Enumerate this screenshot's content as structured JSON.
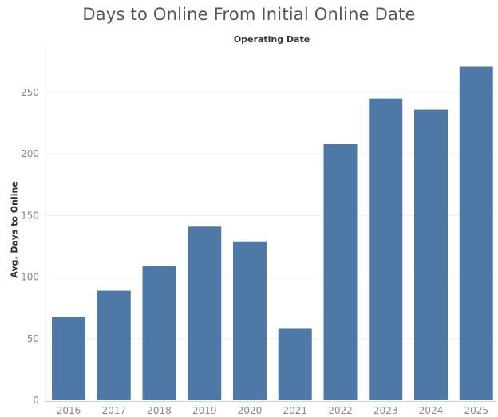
{
  "chart_data": {
    "type": "bar",
    "title": "Days to Online From Initial Online Date",
    "header": "Operating Date",
    "xlabel": "",
    "ylabel": "Avg. Days to Online",
    "categories": [
      "2016",
      "2017",
      "2018",
      "2019",
      "2020",
      "2021",
      "2022",
      "2023",
      "2024",
      "2025"
    ],
    "values": [
      68,
      89,
      109,
      141,
      129,
      58,
      208,
      245,
      236,
      271
    ],
    "y_ticks": [
      "0",
      "50",
      "100",
      "150",
      "200",
      "250"
    ],
    "ylim": [
      0,
      280
    ],
    "grid": true,
    "legend": "none",
    "colors": {
      "bar": "#4e79a7",
      "grid": "#eeeeee",
      "tick_text": "#888888"
    }
  }
}
